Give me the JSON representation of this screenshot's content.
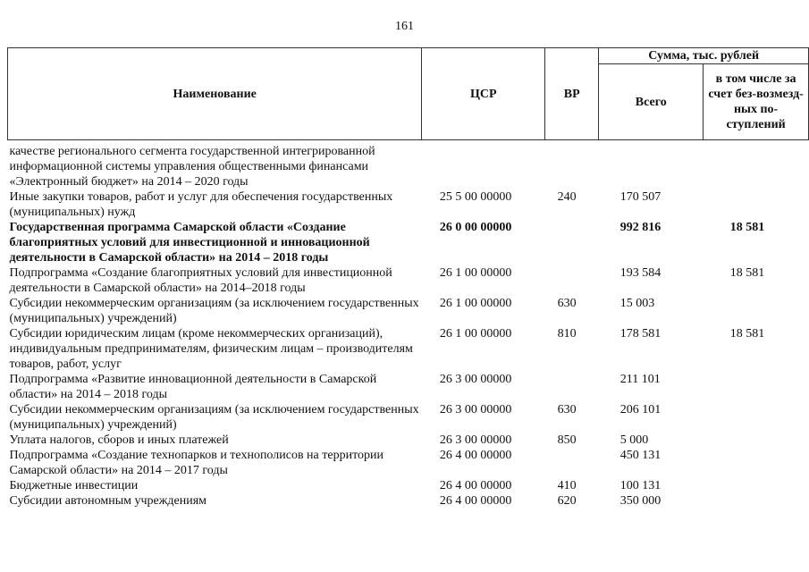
{
  "page_number": "161",
  "header": {
    "name": "Наименование",
    "csr": "ЦСР",
    "vr": "ВР",
    "sum_group": "Сумма, тыс. рублей",
    "total": "Всего",
    "incl": "в том числе за счет без-возмезд-ных по-ступлений"
  },
  "rows": [
    {
      "name": "качестве регионального сегмента государственной интегрированной информационной системы управления общественными финансами «Электронный бюджет» на 2014 – 2020 годы",
      "csr": "",
      "vr": "",
      "total": "",
      "incl": "",
      "bold": false
    },
    {
      "name": "Иные закупки товаров, работ и услуг для обеспечения государственных (муниципальных) нужд",
      "csr": "25 5 00 00000",
      "vr": "240",
      "total": "170 507",
      "incl": "",
      "bold": false
    },
    {
      "name": "Государственная программа Самарской области «Создание благоприятных условий для инвестиционной и инновационной деятельности в Самарской области» на 2014 – 2018 годы",
      "csr": "26 0 00 00000",
      "vr": "",
      "total": "992 816",
      "incl": "18 581",
      "bold": true
    },
    {
      "name": "Подпрограмма «Создание благоприятных условий для инвестиционной деятельности в Самарской области» на 2014–2018 годы",
      "csr": "26 1 00 00000",
      "vr": "",
      "total": "193 584",
      "incl": "18 581",
      "bold": false
    },
    {
      "name": "Субсидии некоммерческим организациям (за исключением государственных (муниципальных) учреждений)",
      "csr": "26 1 00 00000",
      "vr": "630",
      "total": "15 003",
      "incl": "",
      "bold": false
    },
    {
      "name": "Субсидии юридическим лицам (кроме некоммерческих организаций), индивидуальным предпринимателям, физическим лицам – производителям товаров, работ, услуг",
      "csr": "26 1 00 00000",
      "vr": "810",
      "total": "178 581",
      "incl": "18 581",
      "bold": false
    },
    {
      "name": "Подпрограмма «Развитие инновационной деятельности в Самарской области» на 2014 – 2018 годы",
      "csr": "26 3 00 00000",
      "vr": "",
      "total": "211 101",
      "incl": "",
      "bold": false
    },
    {
      "name": "Субсидии некоммерческим организациям (за исключением государственных (муниципальных) учреждений)",
      "csr": "26 3 00 00000",
      "vr": "630",
      "total": "206 101",
      "incl": "",
      "bold": false
    },
    {
      "name": "Уплата налогов, сборов и иных платежей",
      "csr": "26 3 00 00000",
      "vr": "850",
      "total": "5 000",
      "incl": "",
      "bold": false
    },
    {
      "name": "Подпрограмма «Создание технопарков и технополисов на территории Самарской области» на 2014 – 2017 годы",
      "csr": "26 4 00 00000",
      "vr": "",
      "total": "450 131",
      "incl": "",
      "bold": false
    },
    {
      "name": "Бюджетные инвестиции",
      "csr": "26 4 00 00000",
      "vr": "410",
      "total": "100 131",
      "incl": "",
      "bold": false
    },
    {
      "name": "Субсидии автономным учреждениям",
      "csr": "26 4 00 00000",
      "vr": "620",
      "total": "350 000",
      "incl": "",
      "bold": false
    }
  ]
}
